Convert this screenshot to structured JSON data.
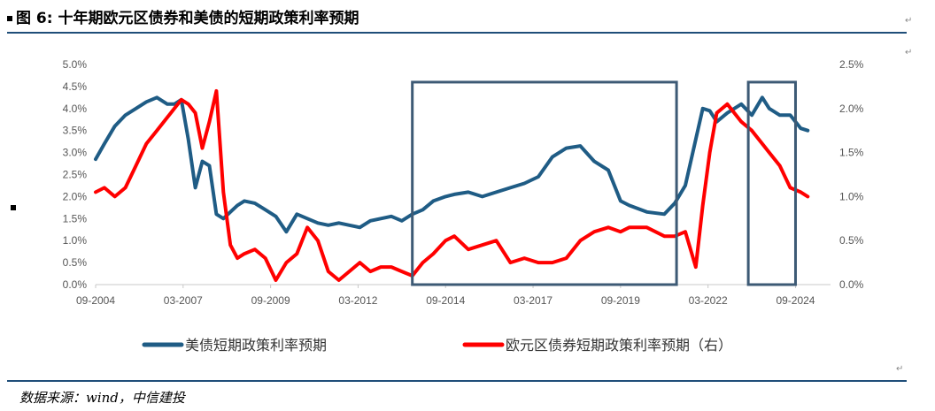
{
  "header": {
    "title": "图 6:  十年期欧元区债券和美债的短期政策利率预期"
  },
  "footer": {
    "source": "数据来源：wind，中信建投"
  },
  "chart_data": {
    "type": "line",
    "title": "",
    "xlabel": "",
    "ylabel": "",
    "x_ticks": [
      "09-2004",
      "03-2007",
      "09-2009",
      "03-2012",
      "09-2014",
      "03-2017",
      "09-2019",
      "03-2022",
      "09-2024"
    ],
    "y_left": {
      "ticks": [
        "0.0%",
        "0.5%",
        "1.0%",
        "1.5%",
        "2.0%",
        "2.5%",
        "3.0%",
        "3.5%",
        "4.0%",
        "4.5%",
        "5.0%"
      ],
      "range": [
        0,
        5
      ]
    },
    "y_right": {
      "ticks": [
        "0.0%",
        "0.5%",
        "1.0%",
        "1.5%",
        "2.0%",
        "2.5%"
      ],
      "range": [
        0,
        2.5
      ]
    },
    "grid": false,
    "legend_position": "bottom",
    "series": [
      {
        "name": "美债短期政策利率预期",
        "axis": "left",
        "color": "#1f5c85",
        "x": [
          2004.75,
          2005.0,
          2005.3,
          2005.6,
          2005.9,
          2006.2,
          2006.5,
          2006.8,
          2007.0,
          2007.2,
          2007.4,
          2007.6,
          2007.8,
          2008.0,
          2008.2,
          2008.4,
          2008.6,
          2008.8,
          2009.0,
          2009.3,
          2009.6,
          2009.9,
          2010.2,
          2010.5,
          2010.8,
          2011.1,
          2011.4,
          2011.7,
          2012.0,
          2012.3,
          2012.6,
          2012.9,
          2013.2,
          2013.5,
          2013.8,
          2014.1,
          2014.4,
          2014.75,
          2015.0,
          2015.4,
          2015.8,
          2016.2,
          2016.6,
          2017.0,
          2017.4,
          2017.8,
          2018.2,
          2018.6,
          2019.0,
          2019.4,
          2019.75,
          2020.0,
          2020.5,
          2021.0,
          2021.3,
          2021.6,
          2021.9,
          2022.1,
          2022.3,
          2022.5,
          2022.8,
          2023.2,
          2023.5,
          2023.8,
          2024.0,
          2024.3,
          2024.6,
          2024.9,
          2025.1
        ],
        "values": [
          2.85,
          3.2,
          3.6,
          3.85,
          4.0,
          4.15,
          4.25,
          4.1,
          4.1,
          4.2,
          3.3,
          2.2,
          2.8,
          2.7,
          1.6,
          1.5,
          1.65,
          1.8,
          1.9,
          1.85,
          1.7,
          1.55,
          1.2,
          1.6,
          1.5,
          1.4,
          1.35,
          1.4,
          1.35,
          1.3,
          1.45,
          1.5,
          1.55,
          1.45,
          1.6,
          1.7,
          1.9,
          2.0,
          2.05,
          2.1,
          2.0,
          2.1,
          2.2,
          2.3,
          2.45,
          2.9,
          3.1,
          3.15,
          2.8,
          2.6,
          1.9,
          1.8,
          1.65,
          1.6,
          1.85,
          2.25,
          3.3,
          4.0,
          3.95,
          3.7,
          3.9,
          4.1,
          3.85,
          4.25,
          4.0,
          3.85,
          3.85,
          3.55,
          3.5
        ]
      },
      {
        "name": "欧元区债券短期政策利率预期（右）",
        "axis": "right",
        "color": "#ff0000",
        "x": [
          2004.75,
          2005.0,
          2005.3,
          2005.6,
          2005.9,
          2006.2,
          2006.5,
          2006.8,
          2007.0,
          2007.2,
          2007.4,
          2007.6,
          2007.8,
          2008.0,
          2008.2,
          2008.4,
          2008.6,
          2008.8,
          2009.0,
          2009.3,
          2009.6,
          2009.9,
          2010.2,
          2010.5,
          2010.8,
          2011.1,
          2011.4,
          2011.7,
          2012.0,
          2012.3,
          2012.6,
          2012.9,
          2013.2,
          2013.5,
          2013.8,
          2014.1,
          2014.4,
          2014.75,
          2015.0,
          2015.4,
          2015.8,
          2016.2,
          2016.6,
          2017.0,
          2017.4,
          2017.8,
          2018.2,
          2018.6,
          2019.0,
          2019.4,
          2019.75,
          2020.0,
          2020.5,
          2021.0,
          2021.3,
          2021.6,
          2021.9,
          2022.1,
          2022.3,
          2022.5,
          2022.8,
          2023.2,
          2023.5,
          2023.8,
          2024.0,
          2024.3,
          2024.6,
          2024.9,
          2025.1
        ],
        "values": [
          1.05,
          1.1,
          1.0,
          1.1,
          1.35,
          1.6,
          1.75,
          1.9,
          2.0,
          2.1,
          2.05,
          1.95,
          1.55,
          1.85,
          2.2,
          1.05,
          0.45,
          0.3,
          0.35,
          0.4,
          0.3,
          0.05,
          0.25,
          0.35,
          0.65,
          0.5,
          0.15,
          0.05,
          0.15,
          0.25,
          0.15,
          0.2,
          0.2,
          0.15,
          0.1,
          0.25,
          0.35,
          0.5,
          0.55,
          0.4,
          0.45,
          0.5,
          0.25,
          0.3,
          0.25,
          0.25,
          0.3,
          0.5,
          0.6,
          0.65,
          0.6,
          0.65,
          0.65,
          0.55,
          0.55,
          0.6,
          0.2,
          0.9,
          1.5,
          1.95,
          2.05,
          1.85,
          1.75,
          1.6,
          1.5,
          1.35,
          1.1,
          1.05,
          1.0
        ]
      }
    ],
    "highlight_boxes": [
      {
        "x_range": [
          2013.8,
          2021.35
        ],
        "y_range": [
          0,
          4.6
        ],
        "color": "#3d5a75"
      },
      {
        "x_range": [
          2023.4,
          2024.75
        ],
        "y_range": [
          0,
          4.6
        ],
        "color": "#3d5a75"
      }
    ]
  }
}
